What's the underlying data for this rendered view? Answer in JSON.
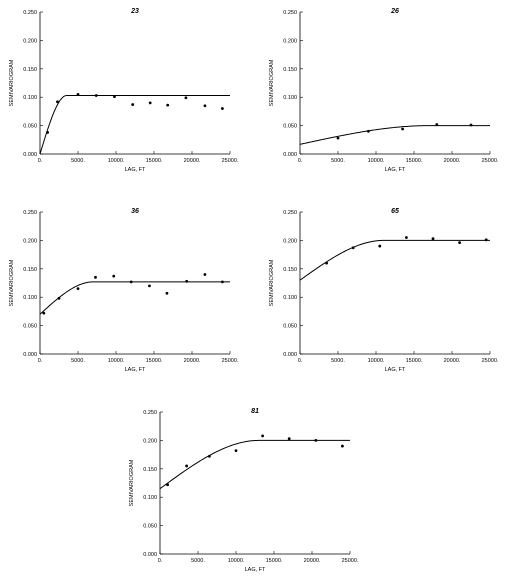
{
  "axis_text": {
    "xlabel": "LAG, FT",
    "ylabel": "SEMIVARIOGRAM",
    "xticks": [
      "0.",
      "5000.",
      "10000.",
      "15000.",
      "20000.",
      "25000."
    ],
    "yticks": [
      "0.000",
      "0.050",
      "0.100",
      "0.150",
      "0.200",
      "0.250"
    ]
  },
  "chart_data": [
    {
      "type": "scatter",
      "title": "23",
      "xlabel": "LAG, FT",
      "ylabel": "SEMIVARIOGRAM",
      "xlim": [
        0,
        25000
      ],
      "ylim": [
        0,
        0.25
      ],
      "grid": false,
      "model": {
        "nugget": 0.0,
        "sill": 0.103,
        "range": 3500
      },
      "points": [
        {
          "x": 1000,
          "y": 0.038
        },
        {
          "x": 2300,
          "y": 0.092
        },
        {
          "x": 5000,
          "y": 0.105
        },
        {
          "x": 7400,
          "y": 0.103
        },
        {
          "x": 9800,
          "y": 0.101
        },
        {
          "x": 12200,
          "y": 0.087
        },
        {
          "x": 14500,
          "y": 0.09
        },
        {
          "x": 16800,
          "y": 0.086
        },
        {
          "x": 19200,
          "y": 0.099
        },
        {
          "x": 21700,
          "y": 0.085
        },
        {
          "x": 24000,
          "y": 0.08
        }
      ]
    },
    {
      "type": "scatter",
      "title": "26",
      "xlabel": "LAG, FT",
      "ylabel": "SEMIVARIOGRAM",
      "xlim": [
        0,
        25000
      ],
      "ylim": [
        0,
        0.25
      ],
      "grid": false,
      "model": {
        "nugget": 0.017,
        "sill": 0.05,
        "range": 17000
      },
      "points": [
        {
          "x": 5000,
          "y": 0.028
        },
        {
          "x": 9000,
          "y": 0.04
        },
        {
          "x": 13500,
          "y": 0.044
        },
        {
          "x": 18000,
          "y": 0.052
        },
        {
          "x": 22500,
          "y": 0.051
        }
      ]
    },
    {
      "type": "scatter",
      "title": "36",
      "xlabel": "LAG, FT",
      "ylabel": "SEMIVARIOGRAM",
      "xlim": [
        0,
        25000
      ],
      "ylim": [
        0,
        0.25
      ],
      "grid": false,
      "model": {
        "nugget": 0.07,
        "sill": 0.127,
        "range": 7000
      },
      "points": [
        {
          "x": 500,
          "y": 0.072
        },
        {
          "x": 2500,
          "y": 0.098
        },
        {
          "x": 5000,
          "y": 0.115
        },
        {
          "x": 7300,
          "y": 0.135
        },
        {
          "x": 9700,
          "y": 0.137
        },
        {
          "x": 12000,
          "y": 0.127
        },
        {
          "x": 14400,
          "y": 0.12
        },
        {
          "x": 16700,
          "y": 0.107
        },
        {
          "x": 19300,
          "y": 0.128
        },
        {
          "x": 21700,
          "y": 0.14
        },
        {
          "x": 24000,
          "y": 0.127
        }
      ]
    },
    {
      "type": "scatter",
      "title": "65",
      "xlabel": "LAG, FT",
      "ylabel": "SEMIVARIOGRAM",
      "xlim": [
        0,
        25000
      ],
      "ylim": [
        0,
        0.25
      ],
      "grid": false,
      "model": {
        "nugget": 0.13,
        "sill": 0.2,
        "range": 11000
      },
      "points": [
        {
          "x": 3500,
          "y": 0.16
        },
        {
          "x": 7000,
          "y": 0.187
        },
        {
          "x": 10500,
          "y": 0.19
        },
        {
          "x": 14000,
          "y": 0.205
        },
        {
          "x": 17500,
          "y": 0.203
        },
        {
          "x": 21000,
          "y": 0.196
        },
        {
          "x": 24500,
          "y": 0.201
        }
      ]
    },
    {
      "type": "scatter",
      "title": "81",
      "xlabel": "LAG, FT",
      "ylabel": "SEMIVARIOGRAM",
      "xlim": [
        0,
        25000
      ],
      "ylim": [
        0,
        0.25
      ],
      "grid": false,
      "model": {
        "nugget": 0.115,
        "sill": 0.2,
        "range": 13000
      },
      "points": [
        {
          "x": 1000,
          "y": 0.122
        },
        {
          "x": 3500,
          "y": 0.155
        },
        {
          "x": 6500,
          "y": 0.172
        },
        {
          "x": 10000,
          "y": 0.182
        },
        {
          "x": 13500,
          "y": 0.208
        },
        {
          "x": 17000,
          "y": 0.203
        },
        {
          "x": 20500,
          "y": 0.2
        },
        {
          "x": 24000,
          "y": 0.19
        }
      ]
    }
  ]
}
